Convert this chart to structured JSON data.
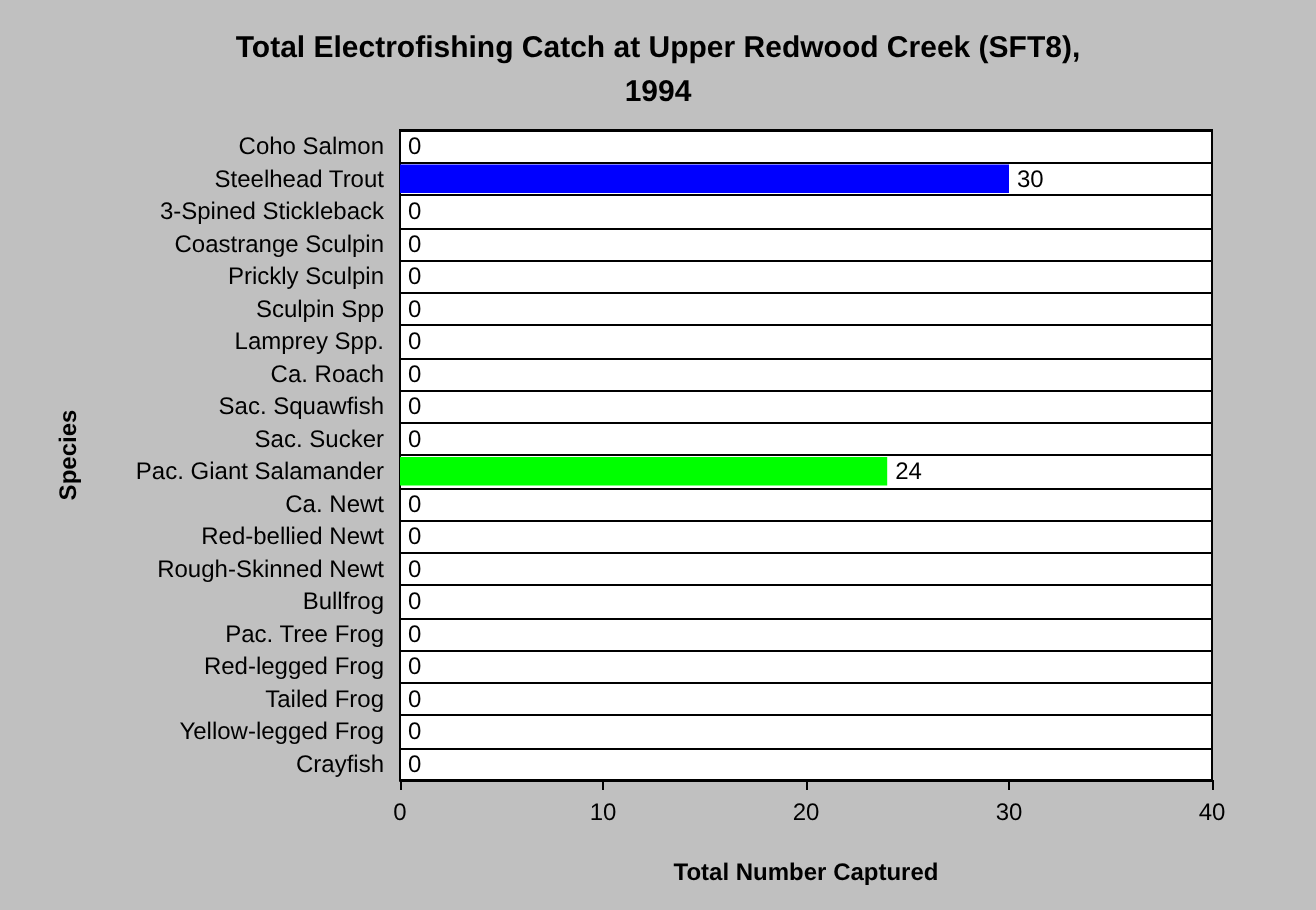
{
  "chart_data": {
    "type": "bar",
    "orientation": "horizontal",
    "title": "Total Electrofishing Catch at Upper Redwood Creek (SFT8),\n1994",
    "xlabel": "Total Number Captured",
    "ylabel": "Species",
    "categories": [
      "Coho Salmon",
      "Steelhead Trout",
      "3-Spined Stickleback",
      "Coastrange Sculpin",
      "Prickly Sculpin",
      "Sculpin Spp",
      "Lamprey Spp.",
      "Ca. Roach",
      "Sac. Squawfish",
      "Sac. Sucker",
      "Pac. Giant Salamander",
      "Ca. Newt",
      "Red-bellied Newt",
      "Rough-Skinned Newt",
      "Bullfrog",
      "Pac. Tree Frog",
      "Red-legged Frog",
      "Tailed Frog",
      "Yellow-legged Frog",
      "Crayfish"
    ],
    "values": [
      0,
      30,
      0,
      0,
      0,
      0,
      0,
      0,
      0,
      0,
      24,
      0,
      0,
      0,
      0,
      0,
      0,
      0,
      0,
      0
    ],
    "colors": [
      null,
      "#0000ff",
      null,
      null,
      null,
      null,
      null,
      null,
      null,
      null,
      "#00ff00",
      null,
      null,
      null,
      null,
      null,
      null,
      null,
      null,
      null
    ],
    "xlim": [
      0,
      40
    ],
    "xticks": [
      0,
      10,
      20,
      30,
      40
    ],
    "grid": "y",
    "data_labels": true
  }
}
